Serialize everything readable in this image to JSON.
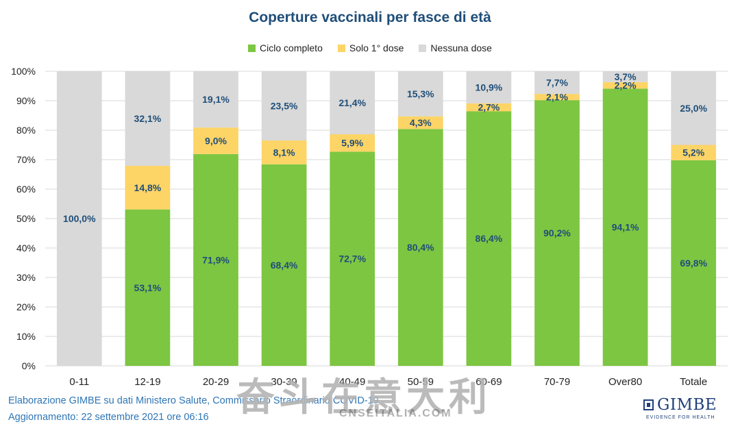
{
  "colors": {
    "green": "#7dc642",
    "yellow": "#fdd466",
    "gray": "#d9d9d9",
    "label": "#1f4e79",
    "grid": "#d9d9d9"
  },
  "chart_data": {
    "type": "bar",
    "stacked": true,
    "title": "Coperture vaccinali per fasce di età",
    "legend_position": "top",
    "grid": true,
    "ylim": [
      0,
      100
    ],
    "yticks": [
      "0%",
      "10%",
      "20%",
      "30%",
      "40%",
      "50%",
      "60%",
      "70%",
      "80%",
      "90%",
      "100%"
    ],
    "categories": [
      "0-11",
      "12-19",
      "20-29",
      "30-39",
      "40-49",
      "50-59",
      "60-69",
      "70-79",
      "Over80",
      "Totale"
    ],
    "series": [
      {
        "name": "Ciclo completo",
        "values": [
          0,
          53.1,
          71.9,
          68.4,
          72.7,
          80.4,
          86.4,
          90.2,
          94.1,
          69.8
        ],
        "labels": [
          "",
          "53,1%",
          "71,9%",
          "68,4%",
          "72,7%",
          "80,4%",
          "86,4%",
          "90,2%",
          "94,1%",
          "69,8%"
        ]
      },
      {
        "name": "Solo 1° dose",
        "values": [
          0,
          14.8,
          9.0,
          8.1,
          5.9,
          4.3,
          2.7,
          2.1,
          2.2,
          5.2
        ],
        "labels": [
          "",
          "14,8%",
          "9,0%",
          "8,1%",
          "5,9%",
          "4,3%",
          "2,7%",
          "2,1%",
          "2,2%",
          "5,2%"
        ]
      },
      {
        "name": "Nessuna dose",
        "values": [
          100.0,
          32.1,
          19.1,
          23.5,
          21.4,
          15.3,
          10.9,
          7.7,
          3.7,
          25.0
        ],
        "labels": [
          "100,0%",
          "32,1%",
          "19,1%",
          "23,5%",
          "21,4%",
          "15,3%",
          "10,9%",
          "7,7%",
          "3,7%",
          "25,0%"
        ]
      }
    ]
  },
  "footer": {
    "line1": "Elaborazione GIMBE su dati Ministero Salute, Commissario Straordinario COVID-19",
    "line2": "Aggiornamento: 22 settembre 2021 ore 06:16"
  },
  "logo": {
    "text": "GIMBE",
    "subtitle": "EVIDENCE FOR HEALTH"
  },
  "watermark": {
    "text": "奋斗在意大利",
    "subtitle": "CNSEITALIA.COM"
  }
}
